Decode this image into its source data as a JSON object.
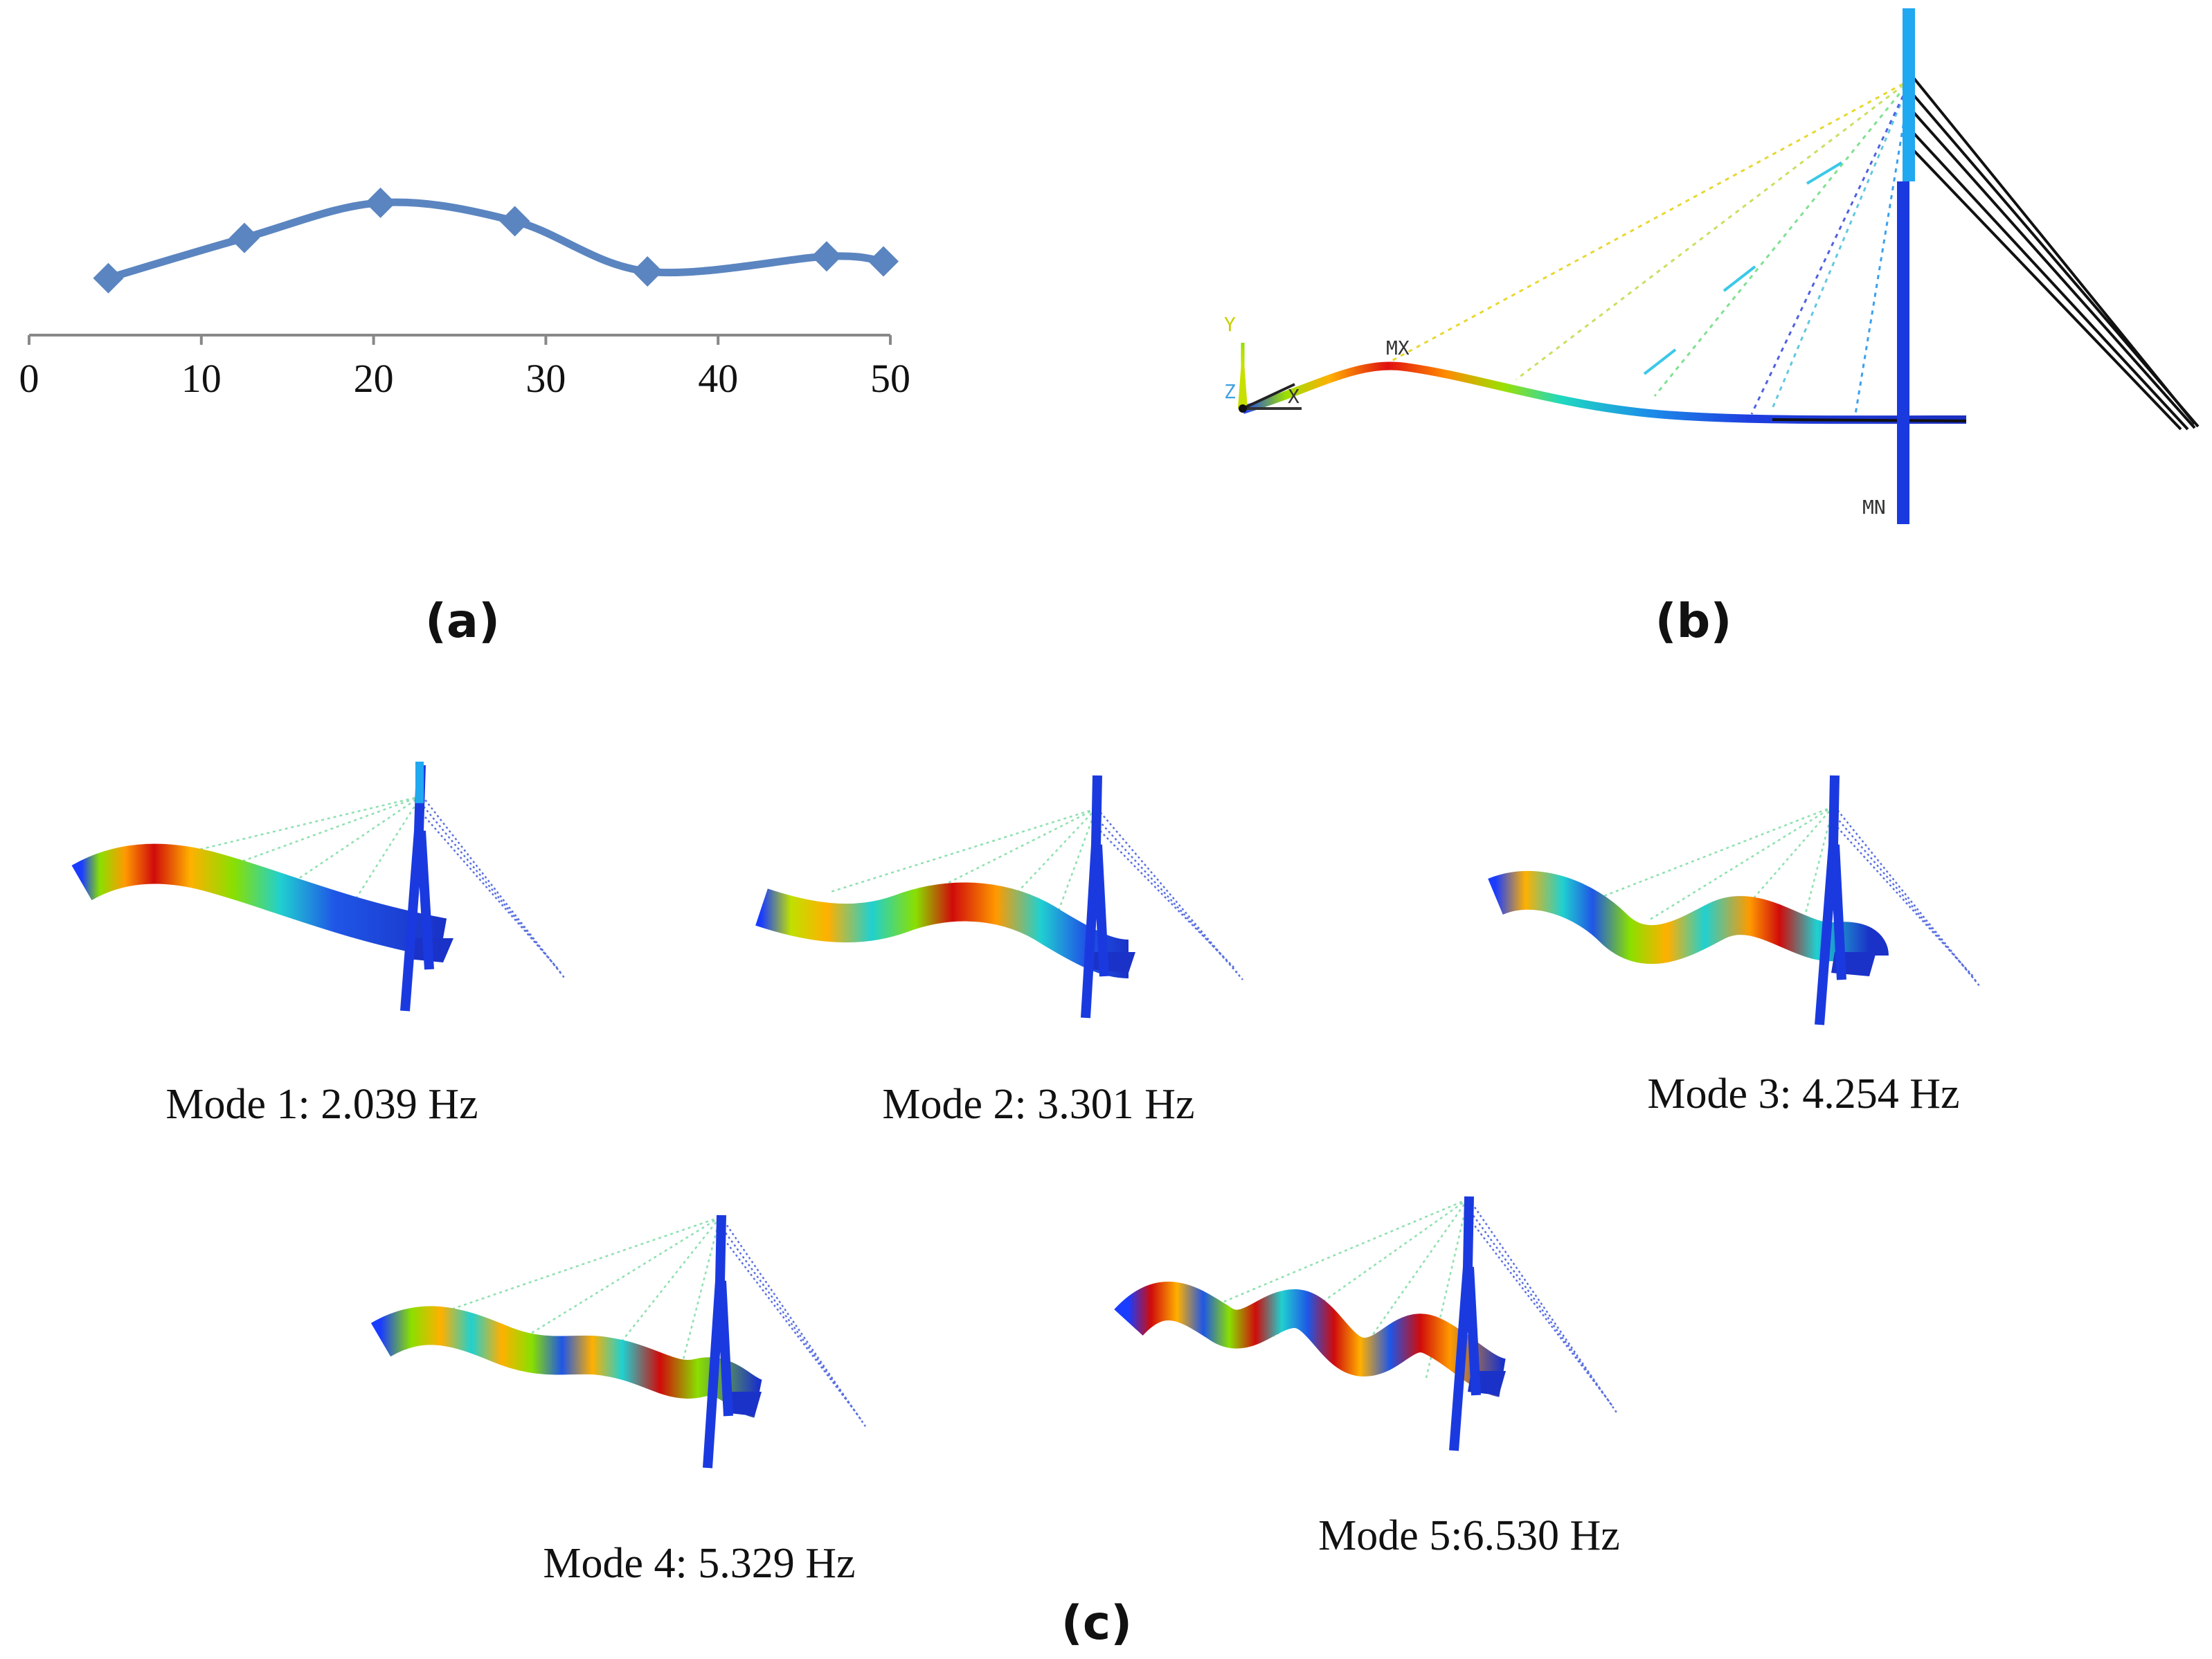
{
  "panels": {
    "a_label": "(a)",
    "b_label": "(b)",
    "c_label": "(c)"
  },
  "chart_data": {
    "type": "line",
    "x": [
      4.6,
      12.5,
      20.4,
      28.2,
      35.9,
      46.3,
      49.6
    ],
    "y": [
      3.4,
      5.8,
      7.9,
      6.8,
      3.8,
      4.7,
      4.4
    ],
    "xlim": [
      0,
      50
    ],
    "ylim": [
      0,
      20
    ],
    "xticks": [
      "0",
      "10",
      "20",
      "30",
      "40",
      "50"
    ],
    "marker": "diamond",
    "color": "#5b85c0",
    "smooth": true,
    "title": "",
    "xlabel": "",
    "ylabel": ""
  },
  "panel_b": {
    "axis_y": "Y",
    "axis_z": "Z",
    "axis_x": "X",
    "max_label": "MX",
    "min_label": "MN"
  },
  "modes": [
    {
      "caption": "Mode 1: 2.039 Hz"
    },
    {
      "caption": "Mode 2: 3.301 Hz"
    },
    {
      "caption": "Mode 3: 4.254 Hz"
    },
    {
      "caption": "Mode 4: 5.329 Hz"
    },
    {
      "caption": "Mode 5:6.530 Hz"
    }
  ]
}
